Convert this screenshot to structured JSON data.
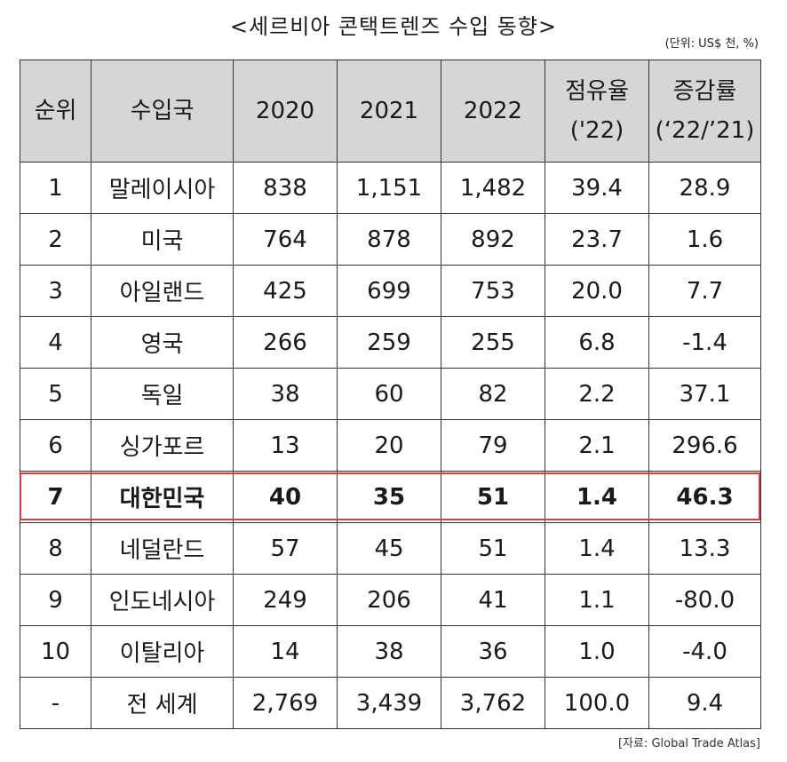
{
  "title": "<세르비아 콘택트렌즈 수입 동향>",
  "unit_note": "(단위: US$ 천, %)",
  "headers": {
    "rank": "순위",
    "country": "수입국",
    "y2020": "2020",
    "y2021": "2021",
    "y2022": "2022",
    "share_line1": "점유율",
    "share_line2": "('22)",
    "growth_line1": "증감률",
    "growth_line2": "(‘22/’21)"
  },
  "rows": [
    {
      "rank": "1",
      "country": "말레이시아",
      "y2020": "838",
      "y2021": "1,151",
      "y2022": "1,482",
      "share": "39.4",
      "growth": "28.9"
    },
    {
      "rank": "2",
      "country": "미국",
      "y2020": "764",
      "y2021": "878",
      "y2022": "892",
      "share": "23.7",
      "growth": "1.6"
    },
    {
      "rank": "3",
      "country": "아일랜드",
      "y2020": "425",
      "y2021": "699",
      "y2022": "753",
      "share": "20.0",
      "growth": "7.7"
    },
    {
      "rank": "4",
      "country": "영국",
      "y2020": "266",
      "y2021": "259",
      "y2022": "255",
      "share": "6.8",
      "growth": "-1.4"
    },
    {
      "rank": "5",
      "country": "독일",
      "y2020": "38",
      "y2021": "60",
      "y2022": "82",
      "share": "2.2",
      "growth": "37.1"
    },
    {
      "rank": "6",
      "country": "싱가포르",
      "y2020": "13",
      "y2021": "20",
      "y2022": "79",
      "share": "2.1",
      "growth": "296.6"
    },
    {
      "rank": "7",
      "country": "대한민국",
      "y2020": "40",
      "y2021": "35",
      "y2022": "51",
      "share": "1.4",
      "growth": "46.3"
    },
    {
      "rank": "8",
      "country": "네덜란드",
      "y2020": "57",
      "y2021": "45",
      "y2022": "51",
      "share": "1.4",
      "growth": "13.3"
    },
    {
      "rank": "9",
      "country": "인도네시아",
      "y2020": "249",
      "y2021": "206",
      "y2022": "41",
      "share": "1.1",
      "growth": "-80.0"
    },
    {
      "rank": "10",
      "country": "이탈리아",
      "y2020": "14",
      "y2021": "38",
      "y2022": "36",
      "share": "1.0",
      "growth": "-4.0"
    },
    {
      "rank": "-",
      "country": "전 세계",
      "y2020": "2,769",
      "y2021": "3,439",
      "y2022": "3,762",
      "share": "100.0",
      "growth": "9.4"
    }
  ],
  "highlight_color": "#e23a3a",
  "source": "[자료: Global Trade Atlas]"
}
